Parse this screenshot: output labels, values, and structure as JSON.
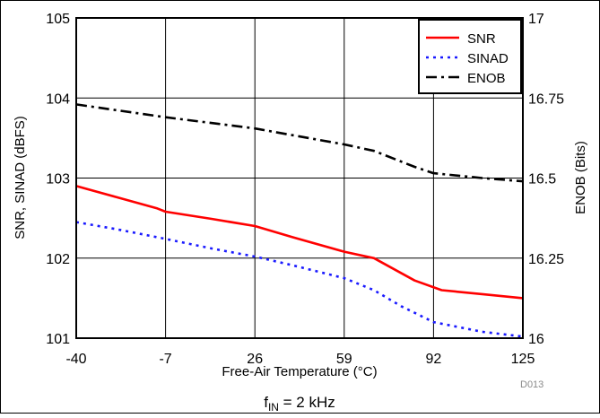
{
  "chart_data": {
    "type": "line",
    "x": [
      -40,
      -7,
      26,
      59,
      92,
      125
    ],
    "xlabel": "Free-Air Temperature (°C)",
    "ylabel": "SNR, SINAD (dBFS)",
    "ylabel_right": "ENOB (Bits)",
    "xlim": [
      -40,
      125
    ],
    "ylim": [
      101,
      105
    ],
    "ylim_right": [
      16,
      17
    ],
    "xticks": [
      "-40",
      "-7",
      "26",
      "59",
      "92",
      "125"
    ],
    "yticks": [
      "101",
      "102",
      "103",
      "104",
      "105"
    ],
    "yticks_right": [
      "16",
      "16.25",
      "16.5",
      "16.75",
      "17"
    ],
    "grid": true,
    "legend_position": "top-right",
    "series": [
      {
        "name": "SNR",
        "axis": "left",
        "color": "#ff0000",
        "dash": "solid",
        "points": [
          [
            -40,
            102.9
          ],
          [
            -25,
            102.76
          ],
          [
            -10,
            102.62
          ],
          [
            -7,
            102.58
          ],
          [
            10,
            102.49
          ],
          [
            26,
            102.4
          ],
          [
            40,
            102.26
          ],
          [
            59,
            102.08
          ],
          [
            70,
            102.0
          ],
          [
            85,
            101.72
          ],
          [
            95,
            101.6
          ],
          [
            110,
            101.55
          ],
          [
            125,
            101.5
          ]
        ]
      },
      {
        "name": "SINAD",
        "axis": "left",
        "color": "#1a1aff",
        "dash": "dotted",
        "points": [
          [
            -40,
            102.45
          ],
          [
            -25,
            102.36
          ],
          [
            -7,
            102.24
          ],
          [
            10,
            102.12
          ],
          [
            26,
            102.02
          ],
          [
            40,
            101.91
          ],
          [
            59,
            101.75
          ],
          [
            70,
            101.6
          ],
          [
            80,
            101.4
          ],
          [
            92,
            101.2
          ],
          [
            110,
            101.08
          ],
          [
            125,
            101.02
          ]
        ]
      },
      {
        "name": "ENOB",
        "axis": "right",
        "color": "#000000",
        "dash": "dash-dot",
        "points": [
          [
            -40,
            16.73
          ],
          [
            -7,
            16.69
          ],
          [
            26,
            16.655
          ],
          [
            59,
            16.605
          ],
          [
            70,
            16.585
          ],
          [
            85,
            16.535
          ],
          [
            92,
            16.515
          ],
          [
            110,
            16.5
          ],
          [
            125,
            16.49
          ]
        ]
      }
    ]
  },
  "footer": {
    "code": "D013",
    "caption_main": "f",
    "caption_sub": "IN",
    "caption_rest": " = 2 kHz"
  }
}
